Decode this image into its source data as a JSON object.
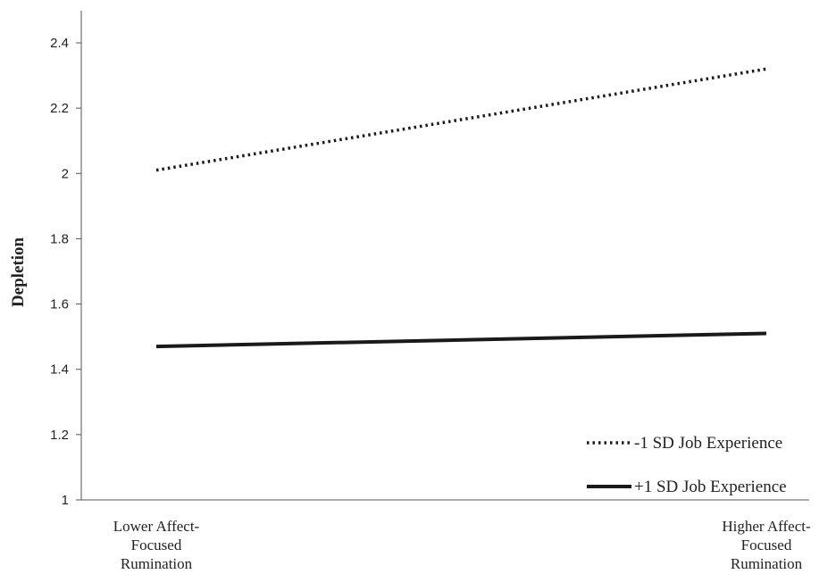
{
  "chart_data": {
    "type": "line",
    "title": "",
    "xlabel": "",
    "ylabel": "Depletion",
    "categories": [
      [
        "Lower Affect-",
        "Focused",
        "Rumination"
      ],
      [
        "Higher Affect-",
        "Focused",
        "Rumination"
      ]
    ],
    "ylim": [
      1,
      2.4
    ],
    "yticks": [
      "1",
      "1.2",
      "1.4",
      "1.6",
      "1.8",
      "2",
      "2.2",
      "2.4"
    ],
    "ytick_values": [
      1,
      1.2,
      1.4,
      1.6,
      1.8,
      2,
      2.2,
      2.4
    ],
    "grid": false,
    "legend_position": "bottom-right",
    "series": [
      {
        "name": "-1 SD Job Experience",
        "values": [
          2.01,
          2.32
        ],
        "style": "dotted",
        "color": "#1a1a1a"
      },
      {
        "name": "+1 SD Job Experience",
        "values": [
          1.47,
          1.51
        ],
        "style": "solid",
        "color": "#1a1a1a"
      }
    ]
  }
}
